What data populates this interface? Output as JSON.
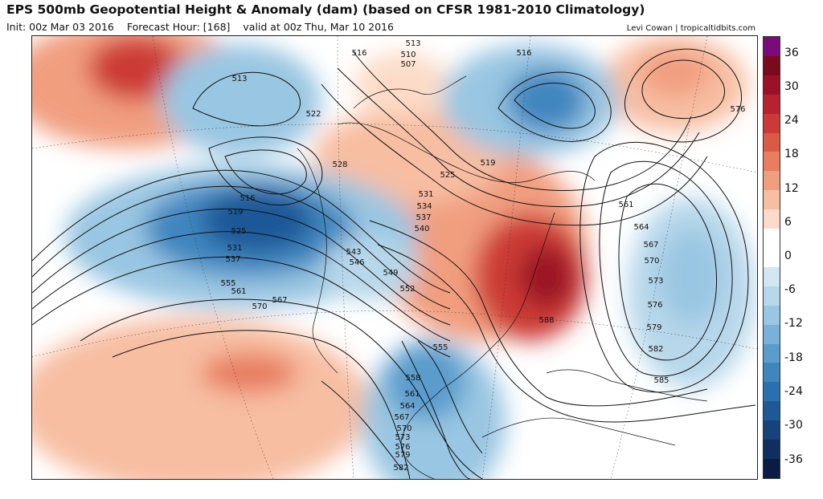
{
  "header": {
    "title": "EPS 500mb Geopotential Height & Anomaly (dam) (based on CFSR 1981-2010 Climatology)",
    "init": "Init: 00z Mar 03 2016",
    "forecast_hour": "Forecast Hour: [168]",
    "valid": "valid at 00z Thu, Mar 10 2016",
    "credit": "Levi Cowan | tropicaltidbits.com"
  },
  "colorbar": {
    "ticks": [
      "36",
      "30",
      "24",
      "18",
      "12",
      "6",
      "0",
      "-6",
      "-12",
      "-18",
      "-24",
      "-30",
      "-36"
    ],
    "colors": [
      "#7b0a7b",
      "#7a0a1e",
      "#9b1228",
      "#b8212e",
      "#cc3a35",
      "#db5a45",
      "#e87d5f",
      "#f19e7f",
      "#f7bea2",
      "#fcdcc8",
      "#ffffff",
      "#ffffff",
      "#d3e7f2",
      "#b7d7ea",
      "#99c6e2",
      "#79b1d8",
      "#5a9ccc",
      "#3f86bf",
      "#2c6fae",
      "#1f5897",
      "#17437c",
      "#0f2f60",
      "#0a1c44"
    ]
  },
  "contour_labels": [
    "513",
    "516",
    "510",
    "507",
    "516",
    "513",
    "522",
    "528",
    "525",
    "519",
    "531",
    "534",
    "537",
    "540",
    "516",
    "519",
    "525",
    "531",
    "537",
    "543",
    "546",
    "549",
    "552",
    "555",
    "561",
    "570",
    "567",
    "555",
    "558",
    "561",
    "564",
    "567",
    "570",
    "573",
    "576",
    "579",
    "582",
    "588",
    "585",
    "561",
    "564",
    "567",
    "570",
    "573",
    "576",
    "579",
    "582",
    "576"
  ]
}
